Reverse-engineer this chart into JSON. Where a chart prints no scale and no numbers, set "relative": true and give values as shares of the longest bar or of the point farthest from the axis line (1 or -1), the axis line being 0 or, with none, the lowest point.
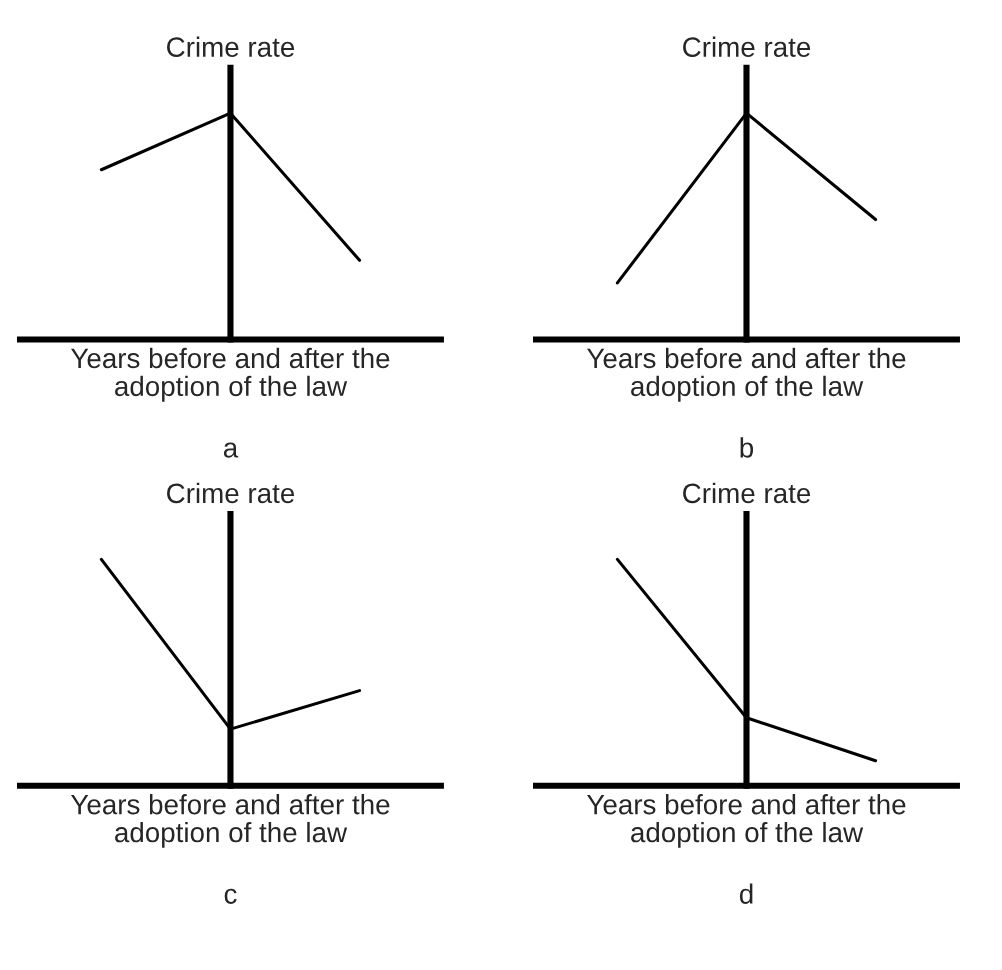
{
  "chart_data": [
    {
      "type": "line",
      "categories": [
        null,
        null,
        null
      ],
      "relative": true,
      "tick_labels": false,
      "ylabel": "Crime rate",
      "xlabel": "Years before and after the\nadoption of the law",
      "annotations": [
        "a"
      ],
      "series": [
        {
          "color": "#000000",
          "values": [
            0.75,
            1,
            0.35
          ]
        }
      ]
    },
    {
      "type": "line",
      "categories": [
        null,
        null,
        null
      ],
      "relative": true,
      "tick_labels": false,
      "ylabel": "Crime rate",
      "xlabel": "Years before and after the\nadoption of the law",
      "annotations": [
        "b"
      ],
      "series": [
        {
          "color": "#000000",
          "values": [
            0.25,
            1,
            0.53
          ]
        }
      ]
    },
    {
      "type": "line",
      "categories": [
        null,
        null,
        null
      ],
      "relative": true,
      "tick_labels": false,
      "ylabel": "Crime rate",
      "xlabel": "Years before and after the\nadoption of the law",
      "annotations": [
        "c"
      ],
      "series": [
        {
          "color": "#000000",
          "values": [
            1,
            0.25,
            0.42
          ]
        }
      ]
    },
    {
      "type": "line",
      "categories": [
        null,
        null,
        null
      ],
      "relative": true,
      "tick_labels": false,
      "ylabel": "Crime rate",
      "xlabel": "Years before and after the\nadoption of the law",
      "annotations": [
        "d"
      ],
      "series": [
        {
          "color": "#000000",
          "values": [
            1,
            0.3,
            0.11
          ]
        }
      ]
    }
  ]
}
